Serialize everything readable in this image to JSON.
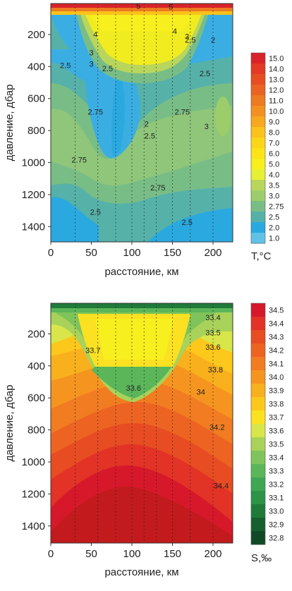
{
  "chart_data": [
    {
      "type": "heatmap",
      "xlabel": "расстояние, км",
      "ylabel": "давление, дбар",
      "x_ticks": [
        "0",
        "50",
        "100",
        "150",
        "200"
      ],
      "y_ticks": [
        "200",
        "400",
        "600",
        "800",
        "1000",
        "1200",
        "1400"
      ],
      "xlim": [
        0,
        225
      ],
      "ylim": [
        1500,
        0
      ],
      "colorbar": {
        "title": "T,°C",
        "labels": [
          "15.0",
          "14.0",
          "13.0",
          "12.0",
          "11.0",
          "10.0",
          "9.0",
          "8.0",
          "7.0",
          "6.0",
          "5.0",
          "4.0",
          "3.5",
          "3.0",
          "2.75",
          "2.5",
          "2.0",
          "1.0"
        ],
        "colors": [
          "#d9222a",
          "#e23a25",
          "#e64e22",
          "#ea6322",
          "#ee7a21",
          "#f29121",
          "#f6a81f",
          "#fac21a",
          "#fdd61a",
          "#fbe418",
          "#f7ef1e",
          "#e6f035",
          "#b9d65c",
          "#9ccd6a",
          "#79bd86",
          "#56b1a9",
          "#2aa9e0",
          "#61c2e8"
        ]
      },
      "stations_km": [
        30,
        58,
        80,
        100,
        115,
        130,
        150,
        172,
        200
      ],
      "contour_labels": [
        {
          "text": "5",
          "x": 108,
          "p": 40
        },
        {
          "text": "5",
          "x": 148,
          "p": 45
        },
        {
          "text": "4",
          "x": 55,
          "p": 215
        },
        {
          "text": "4",
          "x": 153,
          "p": 195
        },
        {
          "text": "3",
          "x": 50,
          "p": 330
        },
        {
          "text": "3",
          "x": 50,
          "p": 400
        },
        {
          "text": "3",
          "x": 168,
          "p": 230
        },
        {
          "text": "2.5",
          "x": 172,
          "p": 250
        },
        {
          "text": "2",
          "x": 200,
          "p": 250
        },
        {
          "text": "2.5",
          "x": 18,
          "p": 410
        },
        {
          "text": "2.5",
          "x": 70,
          "p": 430
        },
        {
          "text": "2.5",
          "x": 190,
          "p": 460
        },
        {
          "text": "2.75",
          "x": 55,
          "p": 700
        },
        {
          "text": "2.75",
          "x": 162,
          "p": 700
        },
        {
          "text": "2",
          "x": 118,
          "p": 775
        },
        {
          "text": "2.5",
          "x": 122,
          "p": 850
        },
        {
          "text": "3",
          "x": 192,
          "p": 790
        },
        {
          "text": "2.75",
          "x": 35,
          "p": 1000
        },
        {
          "text": "2.75",
          "x": 132,
          "p": 1175
        },
        {
          "text": "2.5",
          "x": 55,
          "p": 1325
        },
        {
          "text": "2.5",
          "x": 168,
          "p": 1390
        }
      ]
    },
    {
      "type": "heatmap",
      "xlabel": "расстояние, км",
      "ylabel": "давление, дбар",
      "x_ticks": [
        "0",
        "50",
        "100",
        "150",
        "200"
      ],
      "y_ticks": [
        "200",
        "400",
        "600",
        "800",
        "1000",
        "1200",
        "1400"
      ],
      "xlim": [
        0,
        225
      ],
      "ylim": [
        1500,
        0
      ],
      "colorbar": {
        "title": "S,‰",
        "labels": [
          "34.5",
          "34.4",
          "34.3",
          "34.2",
          "34.1",
          "34.0",
          "33.9",
          "33.8",
          "33.7",
          "33.6",
          "33.5",
          "33.4",
          "33.3",
          "33.2",
          "33.1",
          "33.0",
          "32.9",
          "32.8"
        ],
        "colors": [
          "#d7182a",
          "#e23326",
          "#e84c23",
          "#ed6422",
          "#f17c21",
          "#f59520",
          "#f9b01d",
          "#fcc81b",
          "#fbe122",
          "#d9e64a",
          "#a9d25a",
          "#7fc45a",
          "#5bb65a",
          "#3fa654",
          "#2d9346",
          "#207a39",
          "#165f2e",
          "#0f4a24"
        ]
      },
      "stations_km": [
        30,
        58,
        80,
        100,
        115,
        130,
        150,
        172,
        200
      ],
      "contour_labels": [
        {
          "text": "33.4",
          "x": 200,
          "p": 115
        },
        {
          "text": "33.5",
          "x": 200,
          "p": 210
        },
        {
          "text": "33.6",
          "x": 200,
          "p": 300
        },
        {
          "text": "33.7",
          "x": 52,
          "p": 320
        },
        {
          "text": "33.8",
          "x": 203,
          "p": 440
        },
        {
          "text": "33.6",
          "x": 102,
          "p": 555
        },
        {
          "text": "34",
          "x": 185,
          "p": 580
        },
        {
          "text": "34.2",
          "x": 205,
          "p": 800
        },
        {
          "text": "34.4",
          "x": 210,
          "p": 1165
        }
      ]
    }
  ]
}
